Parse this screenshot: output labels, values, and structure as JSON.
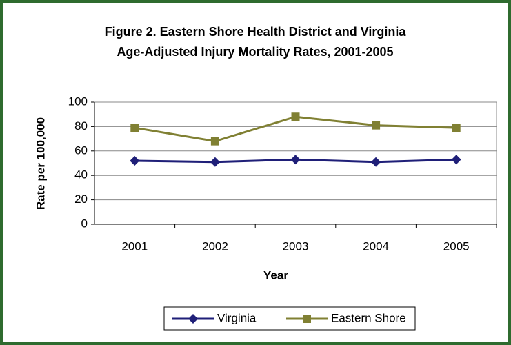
{
  "chart_data": {
    "type": "line",
    "title": [
      "Figure 2. Eastern Shore Health District and Virginia",
      "Age-Adjusted Injury Mortality Rates, 2001-2005"
    ],
    "x_label": "Year",
    "y_label": "Rate per 100,000",
    "categories": [
      "2001",
      "2002",
      "2003",
      "2004",
      "2005"
    ],
    "series": [
      {
        "name": "Virginia",
        "color": "#1f1f78",
        "marker": "diamond",
        "values": [
          52,
          51,
          53,
          51,
          53
        ]
      },
      {
        "name": "Eastern Shore",
        "color": "#808033",
        "marker": "square",
        "values": [
          79,
          68,
          88,
          81,
          79
        ]
      }
    ],
    "ylim": [
      0,
      100
    ],
    "yticks": [
      0,
      20,
      40,
      60,
      80,
      100
    ],
    "grid": true,
    "legend": "bottom"
  }
}
